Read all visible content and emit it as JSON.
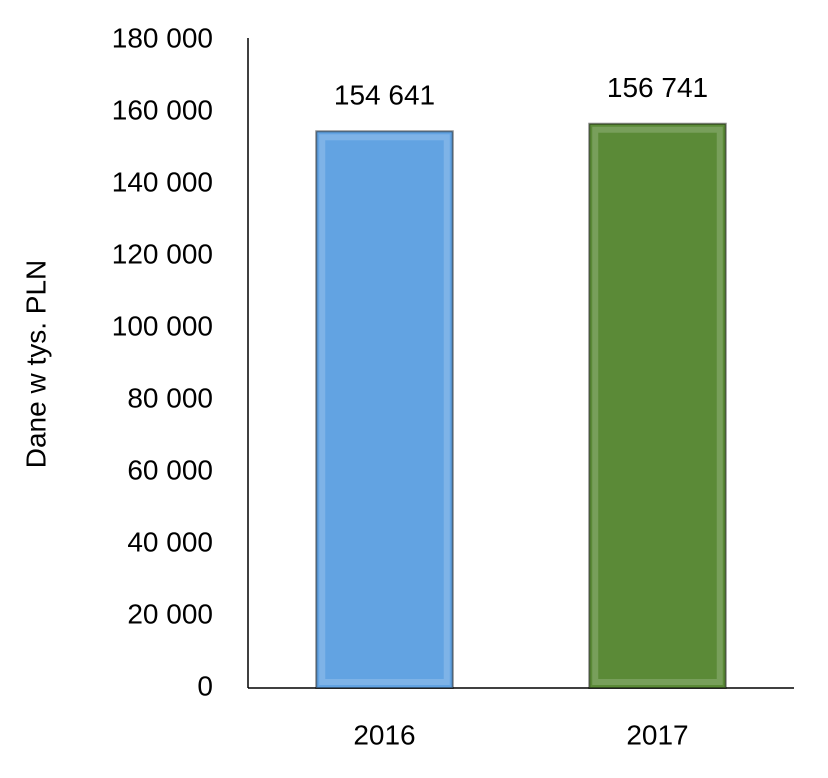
{
  "chart_data": {
    "type": "bar",
    "y_label": "Dane w tys. PLN",
    "categories": [
      "2016",
      "2017"
    ],
    "values": [
      154641,
      156741
    ],
    "value_labels": [
      "154 641",
      "156 741"
    ],
    "colors": [
      "#62a3e2",
      "#5b8a37"
    ],
    "ylim": [
      0,
      180000
    ],
    "yticks": [
      0,
      {
        "value": 20000,
        "label": "20 000"
      },
      {
        "value": 40000,
        "label": "40 000"
      },
      {
        "value": 60000,
        "label": "60 000"
      },
      {
        "value": 80000,
        "label": "80 000"
      },
      {
        "value": 100000,
        "label": "100 000"
      },
      {
        "value": 120000,
        "label": "120 000"
      },
      {
        "value": 140000,
        "label": "140 000"
      },
      {
        "value": 160000,
        "label": "160 000"
      },
      {
        "value": 180000,
        "label": "180 000"
      }
    ],
    "grid": false
  }
}
